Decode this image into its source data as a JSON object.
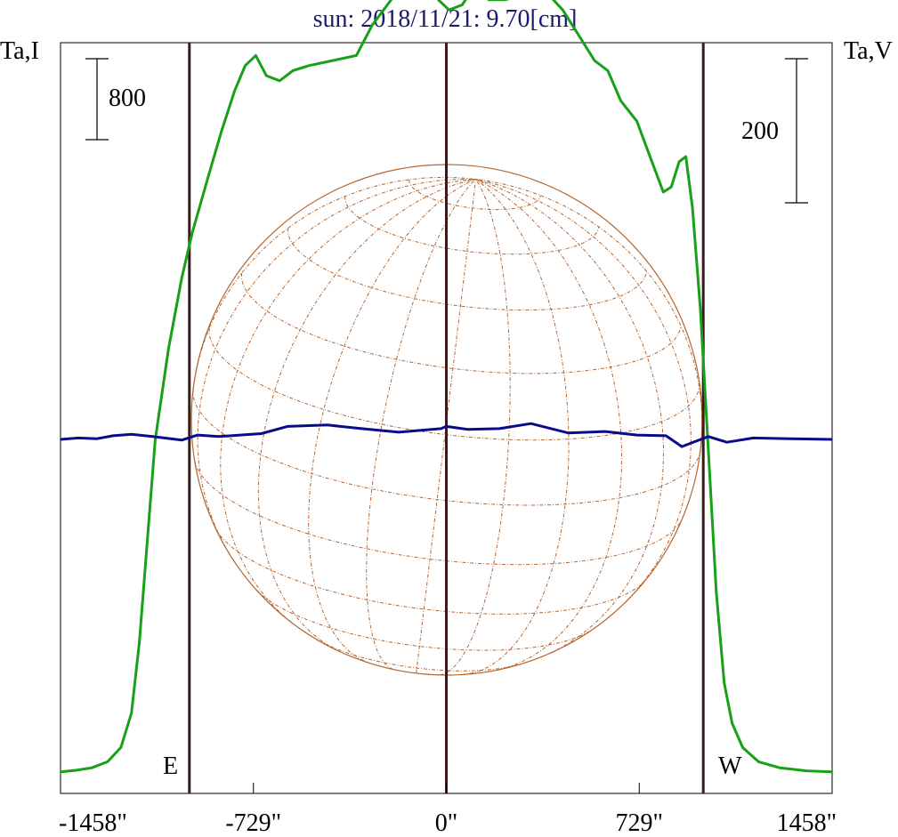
{
  "title": "sun: 2018/11/21: 9.70[cm]",
  "left_axis_label": "Ta,I",
  "right_axis_label": "Ta,V",
  "scale_bars": {
    "left": "800",
    "right": "200"
  },
  "limb_labels": {
    "east": "E",
    "west": "W"
  },
  "colors": {
    "title": "#1a1a6e",
    "intensity": "#18a018",
    "polarization": "#0a0a8c",
    "limb_lines": "#3a1a1a",
    "sun_disk": "#b5652e",
    "frame": "#000000"
  },
  "chart_data": {
    "type": "line",
    "title": "sun: 2018/11/21: 9.70[cm]",
    "xlabel": "",
    "x_ticks": [
      {
        "value": -1458,
        "label": "-1458\""
      },
      {
        "value": -729,
        "label": "-729\""
      },
      {
        "value": 0,
        "label": "0\""
      },
      {
        "value": 729,
        "label": "729\""
      },
      {
        "value": 1458,
        "label": "1458\""
      }
    ],
    "xlim": [
      -1458,
      1458
    ],
    "solar_limbs": [
      -971,
      971
    ],
    "series": [
      {
        "name": "Ta,I",
        "axis": "left",
        "points": [
          [
            -1458,
            20
          ],
          [
            -1400,
            35
          ],
          [
            -1340,
            60
          ],
          [
            -1280,
            120
          ],
          [
            -1230,
            260
          ],
          [
            -1190,
            600
          ],
          [
            -1160,
            1300
          ],
          [
            -1130,
            2300
          ],
          [
            -1100,
            3300
          ],
          [
            -1050,
            4200
          ],
          [
            -1000,
            4900
          ],
          [
            -960,
            5350
          ],
          [
            -900,
            5900
          ],
          [
            -850,
            6350
          ],
          [
            -800,
            6750
          ],
          [
            -760,
            7000
          ],
          [
            -720,
            7100
          ],
          [
            -680,
            6900
          ],
          [
            -630,
            6850
          ],
          [
            -580,
            6950
          ],
          [
            -520,
            7000
          ],
          [
            -430,
            7050
          ],
          [
            -340,
            7100
          ],
          [
            -280,
            7400
          ],
          [
            -200,
            7680
          ],
          [
            -160,
            7800
          ],
          [
            -120,
            8000
          ],
          [
            -70,
            7800
          ],
          [
            -30,
            7650
          ],
          [
            10,
            7550
          ],
          [
            60,
            7600
          ],
          [
            110,
            7800
          ],
          [
            160,
            7650
          ],
          [
            220,
            7650
          ],
          [
            300,
            7700
          ],
          [
            380,
            7720
          ],
          [
            440,
            7550
          ],
          [
            500,
            7300
          ],
          [
            560,
            7050
          ],
          [
            610,
            6950
          ],
          [
            660,
            6650
          ],
          [
            720,
            6450
          ],
          [
            770,
            6100
          ],
          [
            820,
            5750
          ],
          [
            850,
            5800
          ],
          [
            880,
            6050
          ],
          [
            905,
            6100
          ],
          [
            930,
            5600
          ],
          [
            960,
            4600
          ],
          [
            990,
            3200
          ],
          [
            1020,
            1800
          ],
          [
            1050,
            900
          ],
          [
            1080,
            500
          ],
          [
            1120,
            260
          ],
          [
            1180,
            120
          ],
          [
            1260,
            60
          ],
          [
            1360,
            30
          ],
          [
            1458,
            20
          ]
        ]
      },
      {
        "name": "Ta,V",
        "axis": "right",
        "points": [
          [
            -1458,
            0
          ],
          [
            -1390,
            2
          ],
          [
            -1320,
            1
          ],
          [
            -1260,
            5
          ],
          [
            -1190,
            7
          ],
          [
            -1110,
            4
          ],
          [
            -1000,
            -1
          ],
          [
            -940,
            6
          ],
          [
            -860,
            4
          ],
          [
            -700,
            8
          ],
          [
            -600,
            18
          ],
          [
            -450,
            20
          ],
          [
            -320,
            15
          ],
          [
            -180,
            10
          ],
          [
            -20,
            15
          ],
          [
            0,
            18
          ],
          [
            80,
            14
          ],
          [
            200,
            15
          ],
          [
            320,
            22
          ],
          [
            460,
            9
          ],
          [
            600,
            11
          ],
          [
            720,
            6
          ],
          [
            830,
            5
          ],
          [
            890,
            -10
          ],
          [
            940,
            -3
          ],
          [
            990,
            4
          ],
          [
            1060,
            -4
          ],
          [
            1160,
            2
          ],
          [
            1300,
            1
          ],
          [
            1458,
            0
          ]
        ]
      }
    ]
  }
}
